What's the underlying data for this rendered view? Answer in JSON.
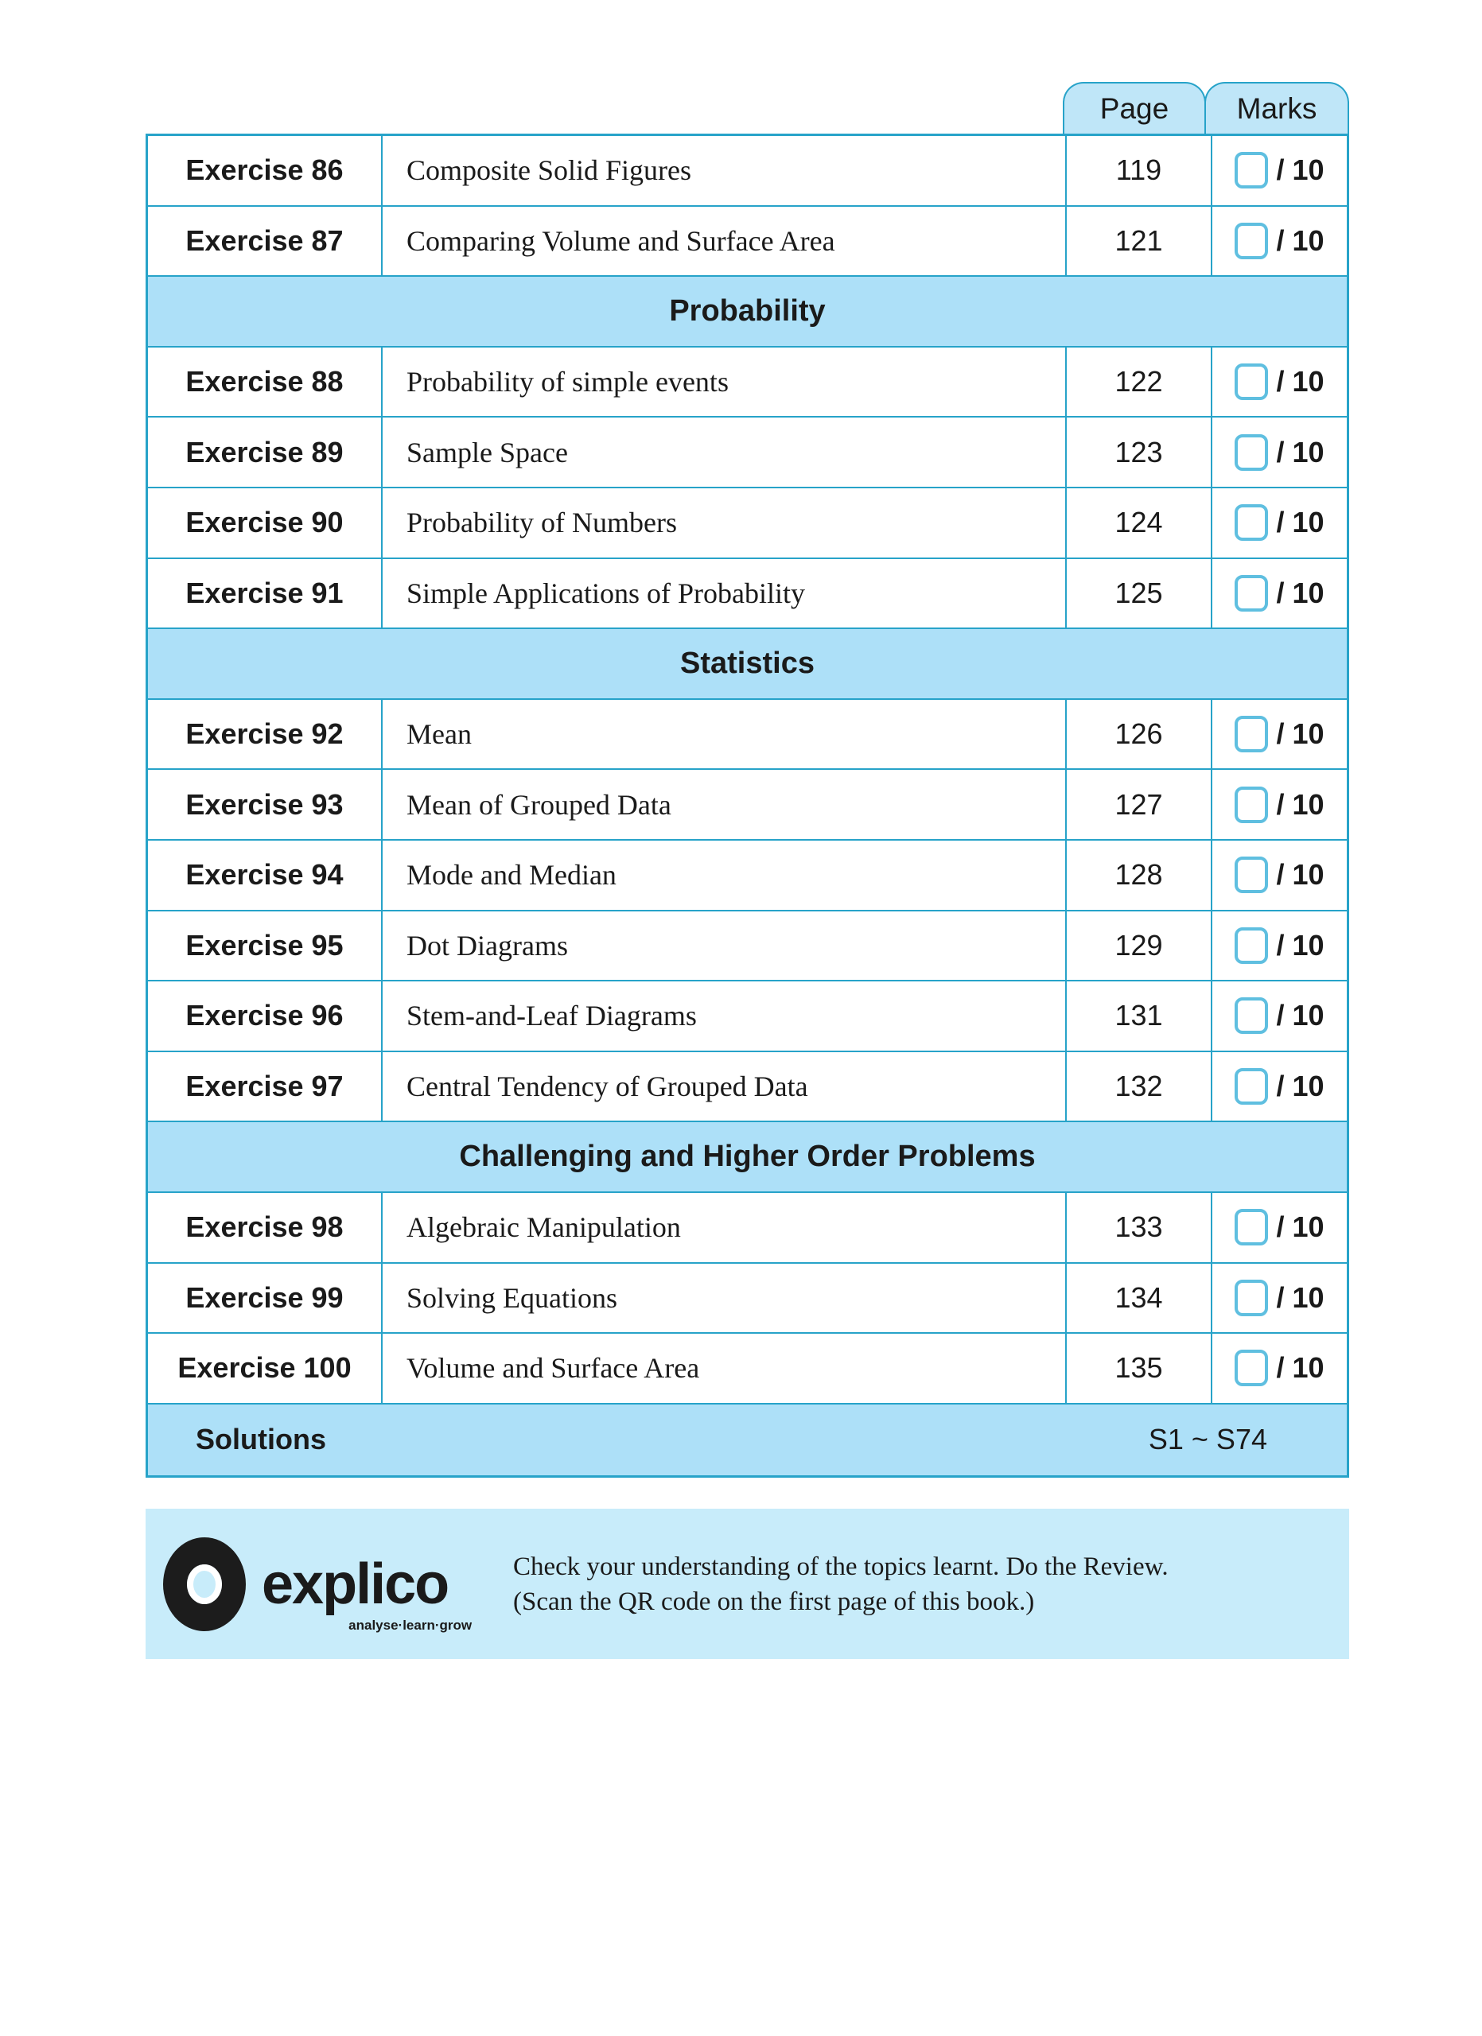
{
  "header": {
    "page_label": "Page",
    "marks_label": "Marks"
  },
  "rows": [
    {
      "type": "item",
      "exercise": "Exercise 86",
      "title": "Composite Solid Figures",
      "page": "119",
      "marks": "/ 10"
    },
    {
      "type": "item",
      "exercise": "Exercise 87",
      "title": "Comparing Volume and Surface Area",
      "page": "121",
      "marks": "/ 10"
    },
    {
      "type": "section",
      "title": "Probability"
    },
    {
      "type": "item",
      "exercise": "Exercise 88",
      "title": "Probability of simple events",
      "page": "122",
      "marks": "/ 10"
    },
    {
      "type": "item",
      "exercise": "Exercise 89",
      "title": "Sample Space",
      "page": "123",
      "marks": "/ 10"
    },
    {
      "type": "item",
      "exercise": "Exercise 90",
      "title": "Probability of Numbers",
      "page": "124",
      "marks": "/ 10"
    },
    {
      "type": "item",
      "exercise": "Exercise 91",
      "title": "Simple Applications of Probability",
      "page": "125",
      "marks": "/ 10"
    },
    {
      "type": "section",
      "title": "Statistics"
    },
    {
      "type": "item",
      "exercise": "Exercise 92",
      "title": "Mean",
      "page": "126",
      "marks": "/ 10"
    },
    {
      "type": "item",
      "exercise": "Exercise 93",
      "title": "Mean of Grouped Data",
      "page": "127",
      "marks": "/ 10"
    },
    {
      "type": "item",
      "exercise": "Exercise 94",
      "title": "Mode and Median",
      "page": "128",
      "marks": "/ 10"
    },
    {
      "type": "item",
      "exercise": "Exercise 95",
      "title": "Dot Diagrams",
      "page": "129",
      "marks": "/ 10"
    },
    {
      "type": "item",
      "exercise": "Exercise 96",
      "title": "Stem-and-Leaf Diagrams",
      "page": "131",
      "marks": "/ 10"
    },
    {
      "type": "item",
      "exercise": "Exercise 97",
      "title": "Central Tendency of Grouped Data",
      "page": "132",
      "marks": "/ 10"
    },
    {
      "type": "section",
      "title": "Challenging and Higher Order Problems"
    },
    {
      "type": "item",
      "exercise": "Exercise 98",
      "title": "Algebraic Manipulation",
      "page": "133",
      "marks": "/ 10"
    },
    {
      "type": "item",
      "exercise": "Exercise 99",
      "title": "Solving Equations",
      "page": "134",
      "marks": "/ 10"
    },
    {
      "type": "item",
      "exercise": "Exercise 100",
      "title": "Volume and Surface Area",
      "page": "135",
      "marks": "/ 10"
    }
  ],
  "solutions": {
    "label": "Solutions",
    "pages": "S1 ~ S74"
  },
  "banner": {
    "logo_text": "explico",
    "logo_tagline": "analyse·learn·grow",
    "line1": "Check your understanding of the topics learnt. Do the Review.",
    "line2": "(Scan the QR code on the first page of this book.)"
  },
  "colors": {
    "border": "#27a3c9",
    "section_bg": "#ade0f8",
    "banner_bg": "#c8ecfa"
  }
}
